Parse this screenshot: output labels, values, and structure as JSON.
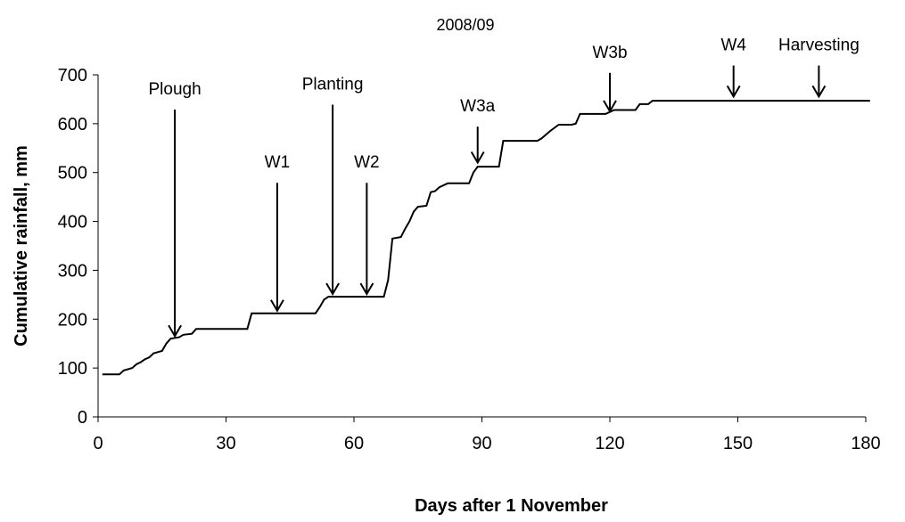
{
  "chart_data": {
    "type": "line",
    "title": "2008/09",
    "xlabel": "Days after 1 November",
    "ylabel": "Cumulative rainfall, mm",
    "xlim": [
      0,
      180
    ],
    "ylim": [
      0,
      700
    ],
    "x_ticks": [
      0,
      30,
      60,
      90,
      120,
      150,
      180
    ],
    "y_ticks": [
      0,
      100,
      200,
      300,
      400,
      500,
      600,
      700
    ],
    "grid": false,
    "legend": "none",
    "line_color": "#000000",
    "series": [
      {
        "points": [
          [
            1,
            87
          ],
          [
            5,
            87
          ],
          [
            6,
            95
          ],
          [
            8,
            100
          ],
          [
            9,
            108
          ],
          [
            10,
            112
          ],
          [
            11,
            118
          ],
          [
            12,
            122
          ],
          [
            13,
            130
          ],
          [
            15,
            135
          ],
          [
            16,
            150
          ],
          [
            17,
            160
          ],
          [
            19,
            163
          ],
          [
            20,
            168
          ],
          [
            22,
            170
          ],
          [
            23,
            180
          ],
          [
            35,
            180
          ],
          [
            36,
            212
          ],
          [
            51,
            212
          ],
          [
            52,
            225
          ],
          [
            53,
            240
          ],
          [
            54,
            246
          ],
          [
            67,
            246
          ],
          [
            68,
            280
          ],
          [
            69,
            365
          ],
          [
            71,
            368
          ],
          [
            72,
            385
          ],
          [
            73,
            400
          ],
          [
            74,
            420
          ],
          [
            75,
            430
          ],
          [
            77,
            432
          ],
          [
            78,
            460
          ],
          [
            79,
            462
          ],
          [
            80,
            470
          ],
          [
            82,
            478
          ],
          [
            87,
            478
          ],
          [
            88,
            500
          ],
          [
            89,
            512
          ],
          [
            94,
            512
          ],
          [
            95,
            565
          ],
          [
            103,
            565
          ],
          [
            104,
            570
          ],
          [
            106,
            585
          ],
          [
            108,
            598
          ],
          [
            111,
            598
          ],
          [
            112,
            600
          ],
          [
            113,
            620
          ],
          [
            119,
            620
          ],
          [
            121,
            628
          ],
          [
            126,
            628
          ],
          [
            127,
            640
          ],
          [
            129,
            640
          ],
          [
            130,
            647
          ],
          [
            181,
            647
          ]
        ]
      }
    ],
    "annotations": [
      {
        "label": "Plough",
        "x": 18,
        "y_tip": 160,
        "label_y": 660
      },
      {
        "label": "W1",
        "x": 42,
        "y_tip": 212,
        "label_y": 510
      },
      {
        "label": "Planting",
        "x": 55,
        "y_tip": 246,
        "label_y": 670
      },
      {
        "label": "W2",
        "x": 63,
        "y_tip": 246,
        "label_y": 510
      },
      {
        "label": "W3a",
        "x": 89,
        "y_tip": 515,
        "label_y": 625
      },
      {
        "label": "W3b",
        "x": 120,
        "y_tip": 620,
        "label_y": 735
      },
      {
        "label": "W4",
        "x": 149,
        "y_tip": 650,
        "label_y": 750
      },
      {
        "label": "Harvesting",
        "x": 169,
        "y_tip": 650,
        "label_y": 750
      }
    ]
  }
}
